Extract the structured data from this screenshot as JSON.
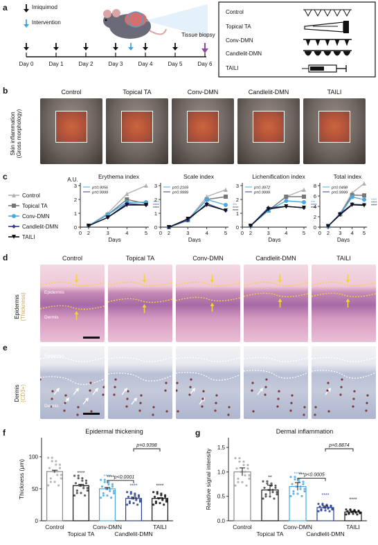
{
  "panels": {
    "a": {
      "letter": "a",
      "legend": [
        {
          "label": "Imiquimod",
          "color": "#111111"
        },
        {
          "label": "Intervention",
          "color": "#3ea6dc"
        }
      ],
      "timeline_days": [
        "Day 0",
        "Day 1",
        "Day 2",
        "Day 3",
        "Day 4",
        "Day 5",
        "Day 6"
      ],
      "biopsy_label": "Tissue biopsy",
      "biopsy_color": "#8a4fa0",
      "groups": [
        "Control",
        "Topical TA",
        "Conv-DMN",
        "Candlelit-DMN",
        "TAILI"
      ]
    },
    "b": {
      "letter": "b",
      "ylabel_1": "Skin inflammation",
      "ylabel_2": "(Gross morphology)",
      "groups": [
        "Control",
        "Topical TA",
        "Conv-DMN",
        "Candlelit-DMN",
        "TAILI"
      ]
    },
    "c": {
      "letter": "c",
      "legend": [
        {
          "label": "Control",
          "color": "#b0b0b0"
        },
        {
          "label": "Topical TA",
          "color": "#777777"
        },
        {
          "label": "Conv-DMN",
          "color": "#4aa8e0"
        },
        {
          "label": "Candlelit-DMN",
          "color": "#2a3f9a"
        },
        {
          "label": "TAILI",
          "color": "#111111"
        }
      ],
      "ylabel": "A.U.",
      "xlabel": "Days"
    },
    "d": {
      "letter": "d",
      "ylabel_1": "Epidermis",
      "ylabel_2": "(Thickness)",
      "label_epidermis": "Epidermis",
      "label_dermis": "Dermis",
      "groups": [
        "Control",
        "Topical TA",
        "Conv-DMN",
        "Candlelit-DMN",
        "TAILI"
      ]
    },
    "e": {
      "letter": "e",
      "ylabel_1": "Dermis",
      "ylabel_2": "(CD3+)",
      "label_epidermis": "Epidermis",
      "label_dermis": "Dermis"
    },
    "f": {
      "letter": "f"
    },
    "g": {
      "letter": "g"
    }
  },
  "chart_data": [
    {
      "type": "line",
      "title": "Erythema index",
      "xlabel": "Days",
      "ylabel": "A.U.",
      "x": [
        2,
        3,
        4,
        5
      ],
      "xticks": [
        0,
        2,
        3,
        4,
        5
      ],
      "ylim": [
        0,
        3
      ],
      "yticks": [
        0,
        1,
        2,
        3
      ],
      "pvalues": [
        "p=0.9056",
        "p=0.9999"
      ],
      "stars": [
        "****",
        "****",
        "****"
      ],
      "series": [
        {
          "name": "Control",
          "values": [
            0.1,
            1.0,
            2.4,
            3.0
          ]
        },
        {
          "name": "Topical TA",
          "values": [
            0.1,
            0.9,
            2.0,
            1.7
          ]
        },
        {
          "name": "Conv-DMN",
          "values": [
            0.1,
            0.9,
            1.8,
            1.8
          ]
        },
        {
          "name": "Candlelit-DMN",
          "values": [
            0.1,
            0.7,
            1.7,
            1.6
          ]
        },
        {
          "name": "TAILI",
          "values": [
            0.1,
            0.7,
            1.6,
            1.6
          ]
        }
      ]
    },
    {
      "type": "line",
      "title": "Scale index",
      "xlabel": "Days",
      "x": [
        2,
        3,
        4,
        5
      ],
      "xticks": [
        0,
        2,
        3,
        4,
        5
      ],
      "ylim": [
        0,
        3
      ],
      "yticks": [
        0,
        1,
        2,
        3
      ],
      "pvalues": [
        "p=0.2169",
        "p=0.9999"
      ],
      "stars": [
        "***",
        "****",
        "****"
      ],
      "series": [
        {
          "name": "Control",
          "values": [
            0.0,
            0.5,
            2.2,
            2.7
          ]
        },
        {
          "name": "Topical TA",
          "values": [
            0.0,
            0.5,
            2.0,
            2.2
          ]
        },
        {
          "name": "Conv-DMN",
          "values": [
            0.0,
            0.5,
            2.0,
            1.6
          ]
        },
        {
          "name": "Candlelit-DMN",
          "values": [
            0.0,
            0.5,
            1.7,
            1.2
          ]
        },
        {
          "name": "TAILI",
          "values": [
            0.0,
            0.6,
            1.6,
            1.2
          ]
        }
      ]
    },
    {
      "type": "line",
      "title": "Lichenification index",
      "xlabel": "Days",
      "x": [
        2,
        3,
        4,
        5
      ],
      "xticks": [
        0,
        2,
        3,
        4,
        5
      ],
      "ylim": [
        0,
        3
      ],
      "yticks": [
        0,
        1,
        2,
        3
      ],
      "pvalues": [
        "p=0.3972",
        "p=0.9999"
      ],
      "stars": [
        "***",
        "****",
        "****"
      ],
      "series": [
        {
          "name": "Control",
          "values": [
            0.1,
            1.2,
            2.2,
            2.7
          ]
        },
        {
          "name": "Topical TA",
          "values": [
            0.1,
            1.2,
            2.2,
            2.2
          ]
        },
        {
          "name": "Conv-DMN",
          "values": [
            0.1,
            1.2,
            1.9,
            1.8
          ]
        },
        {
          "name": "Candlelit-DMN",
          "values": [
            0.1,
            1.4,
            1.5,
            1.4
          ]
        },
        {
          "name": "TAILI",
          "values": [
            0.1,
            1.3,
            1.5,
            1.4
          ]
        }
      ]
    },
    {
      "type": "line",
      "title": "Total index",
      "xlabel": "Days",
      "x": [
        2,
        3,
        4,
        5
      ],
      "xticks": [
        0,
        2,
        3,
        4,
        5
      ],
      "ylim": [
        0,
        8
      ],
      "yticks": [
        0,
        2,
        4,
        6,
        8
      ],
      "pvalues": [
        "p=0.0498",
        "p=0.9999"
      ],
      "stars": [
        "****",
        "****",
        "****"
      ],
      "series": [
        {
          "name": "Control",
          "values": [
            0.2,
            2.6,
            6.6,
            8.4
          ]
        },
        {
          "name": "Topical TA",
          "values": [
            0.2,
            2.5,
            6.2,
            6.1
          ]
        },
        {
          "name": "Conv-DMN",
          "values": [
            0.2,
            2.5,
            5.8,
            5.3
          ]
        },
        {
          "name": "Candlelit-DMN",
          "values": [
            0.2,
            2.6,
            4.4,
            4.3
          ]
        },
        {
          "name": "TAILI",
          "values": [
            0.2,
            2.4,
            4.3,
            4.2
          ]
        }
      ]
    },
    {
      "type": "bar",
      "title": "Epidermal thickening",
      "ylabel": "Thickness (μm)",
      "categories": [
        "Control",
        "Topical TA",
        "Conv-DMN",
        "Candlelit-DMN",
        "TAILI"
      ],
      "values": [
        77,
        55,
        50,
        35,
        35
      ],
      "errors": [
        2,
        2,
        2,
        2,
        1
      ],
      "ylim": [
        0,
        130
      ],
      "yticks": [
        0,
        50,
        100
      ],
      "stars": [
        "",
        "****",
        "****",
        "****",
        "****"
      ],
      "comparisons": [
        "****p<0.0001",
        "p=0.9398"
      ]
    },
    {
      "type": "bar",
      "title": "Dermal inflammation",
      "ylabel": "Relative signal intensity",
      "categories": [
        "Control",
        "Topical TA",
        "Conv-DMN",
        "Candlelit-DMN",
        "TAILI"
      ],
      "values": [
        1.0,
        0.63,
        0.7,
        0.27,
        0.18
      ],
      "errors": [
        0.08,
        0.1,
        0.08,
        0.03,
        0.02
      ],
      "ylim": [
        0,
        1.7
      ],
      "yticks": [
        0.0,
        0.5,
        1.0,
        1.5
      ],
      "stars": [
        "",
        "**",
        "****",
        "****",
        "****"
      ],
      "comparisons": [
        "***p<0.0005",
        "p=0.8874"
      ]
    }
  ]
}
